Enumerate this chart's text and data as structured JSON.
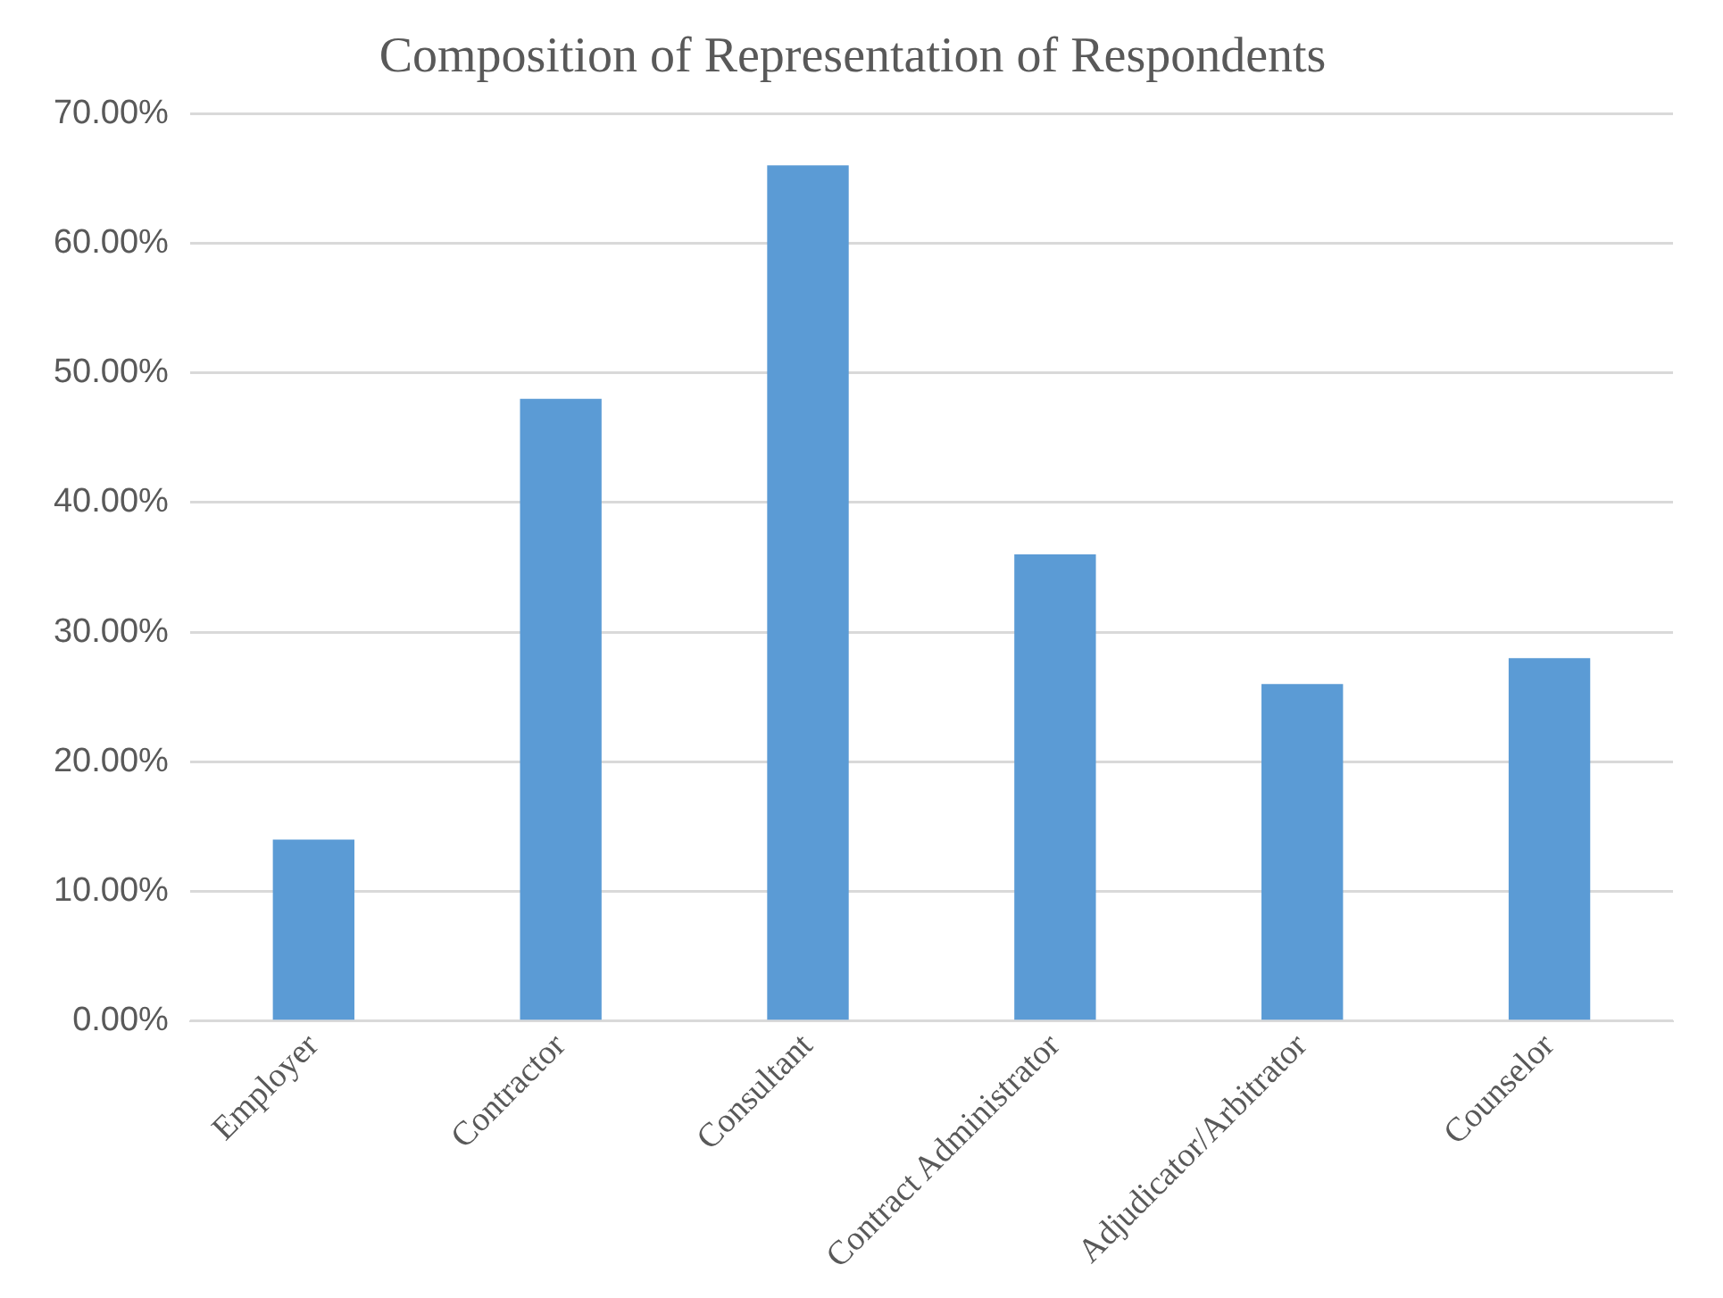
{
  "chart_data": {
    "type": "bar",
    "title": "Composition of Representation of Respondents",
    "categories": [
      "Employer",
      "Contractor",
      "Consultant",
      "Contract Administrator",
      "Adjudicator/Arbitrator",
      "Counselor"
    ],
    "values": [
      14,
      48,
      66,
      36,
      26,
      28
    ],
    "color": "#5b9bd5",
    "ylim": [
      0,
      70
    ],
    "yticks": [
      {
        "value": 0,
        "label": "0.00%"
      },
      {
        "value": 10,
        "label": "10.00%"
      },
      {
        "value": 20,
        "label": "20.00%"
      },
      {
        "value": 30,
        "label": "30.00%"
      },
      {
        "value": 40,
        "label": "40.00%"
      },
      {
        "value": 50,
        "label": "50.00%"
      },
      {
        "value": 60,
        "label": "60.00%"
      },
      {
        "value": 70,
        "label": "70.00%"
      }
    ],
    "grid": "y"
  }
}
